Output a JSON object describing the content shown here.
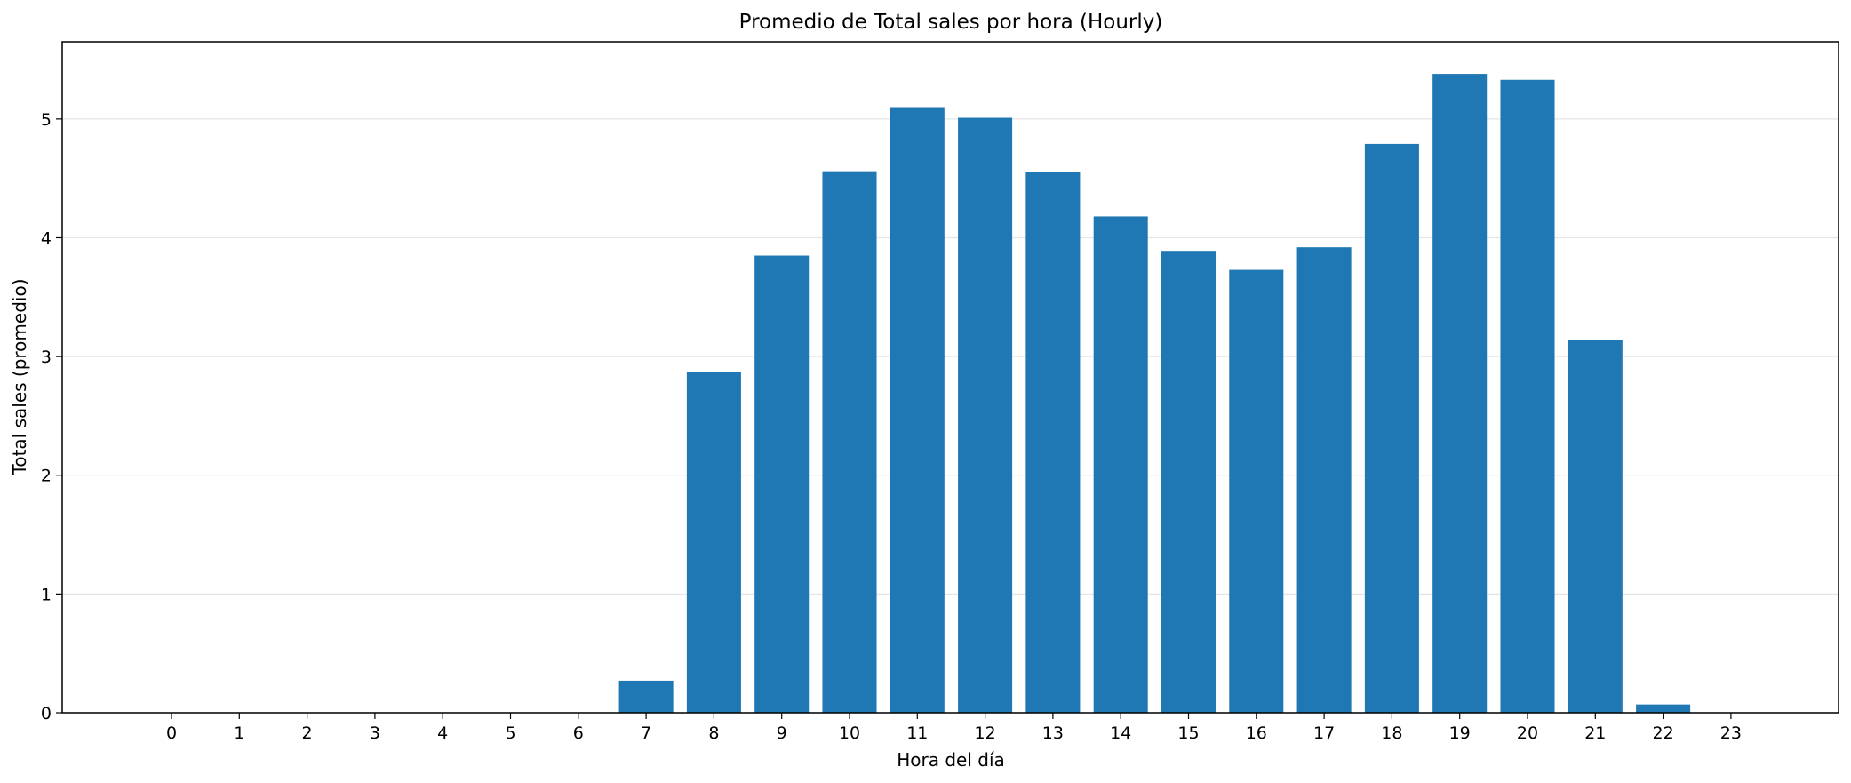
{
  "chart_data": {
    "type": "bar",
    "title": "Promedio de Total sales por hora (Hourly)",
    "xlabel": "Hora del día",
    "ylabel": "Total sales (promedio)",
    "categories": [
      "0",
      "1",
      "2",
      "3",
      "4",
      "5",
      "6",
      "7",
      "8",
      "9",
      "10",
      "11",
      "12",
      "13",
      "14",
      "15",
      "16",
      "17",
      "18",
      "19",
      "20",
      "21",
      "22",
      "23"
    ],
    "values": [
      0,
      0,
      0,
      0,
      0,
      0,
      0,
      0.27,
      2.87,
      3.85,
      4.56,
      5.1,
      5.01,
      4.55,
      4.18,
      3.89,
      3.73,
      3.92,
      4.79,
      5.38,
      5.33,
      3.14,
      0.07,
      0
    ],
    "ylim": [
      0,
      5.65
    ],
    "yticks": [
      "0",
      "1",
      "2",
      "3",
      "4",
      "5"
    ],
    "grid": "y",
    "bar_color": "#1f77b4",
    "grid_color": "#e6e6e6"
  }
}
